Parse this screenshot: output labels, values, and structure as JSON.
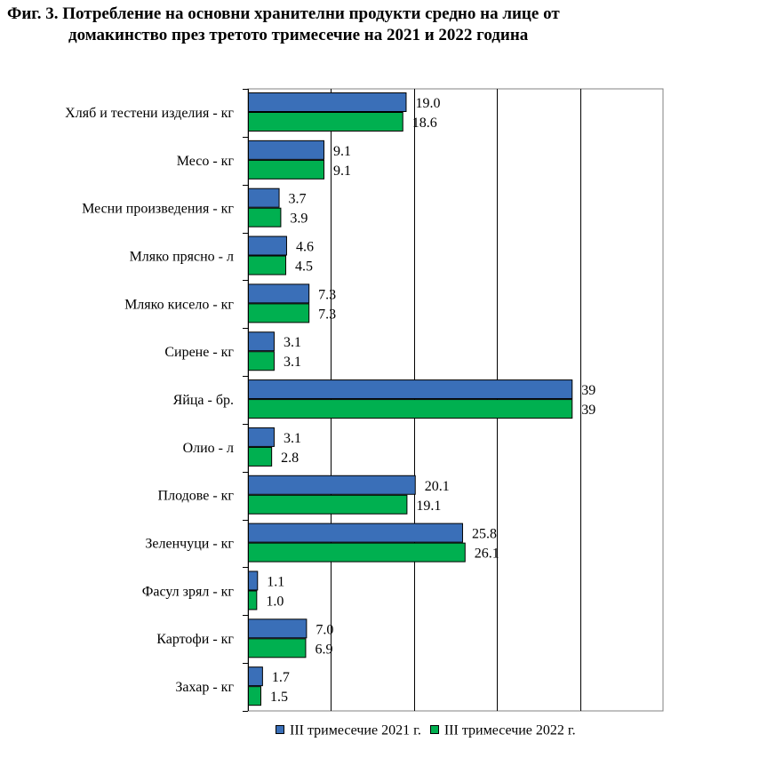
{
  "title": {
    "line1": "Фиг. 3. Потребление на основни хранителни продукти средно на лице от",
    "line2": "домакинство през третото тримесечие на 2021 и 2022 година"
  },
  "colors": {
    "series_2021": "#3a6fb8",
    "series_2022": "#00b050",
    "bar_outline": "#000000",
    "grid": "#000000",
    "frame": "#808080"
  },
  "chart_data": {
    "type": "bar",
    "orientation": "horizontal",
    "categories": [
      "Хляб и тестени изделия - кг",
      "Месо - кг",
      "Месни произведения  - кг",
      "Мляко прясно - л",
      "Мляко кисело - кг",
      "Сирене - кг",
      "Яйца - бр.",
      "Олио - л",
      "Плодове - кг",
      "Зеленчуци - кг",
      "Фасул зрял - кг",
      "Картофи - кг",
      "Захар - кг"
    ],
    "series": [
      {
        "name": "III тримесечие 2021 г.",
        "values": [
          19.0,
          9.1,
          3.7,
          4.6,
          7.3,
          3.1,
          39,
          3.1,
          20.1,
          25.8,
          1.1,
          7.0,
          1.7
        ],
        "labels": [
          "19.0",
          "9.1",
          "3.7",
          "4.6",
          "7.3",
          "3.1",
          "39",
          "3.1",
          "20.1",
          "25.8",
          "1.1",
          "7.0",
          "1.7"
        ]
      },
      {
        "name": "III тримесечие 2022 г.",
        "values": [
          18.6,
          9.1,
          3.9,
          4.5,
          7.3,
          3.1,
          39,
          2.8,
          19.1,
          26.1,
          1.0,
          6.9,
          1.5
        ],
        "labels": [
          "18.6",
          "9.1",
          "3.9",
          "4.5",
          "7.3",
          "3.1",
          "39",
          "2.8",
          "19.1",
          "26.1",
          "1.0",
          "6.9",
          "1.5"
        ]
      }
    ],
    "xlim": [
      0,
      50
    ],
    "major_gridlines_x": [
      10,
      20,
      30,
      40
    ],
    "grid": true,
    "legend_position": "bottom",
    "xlabel": "",
    "ylabel": ""
  }
}
